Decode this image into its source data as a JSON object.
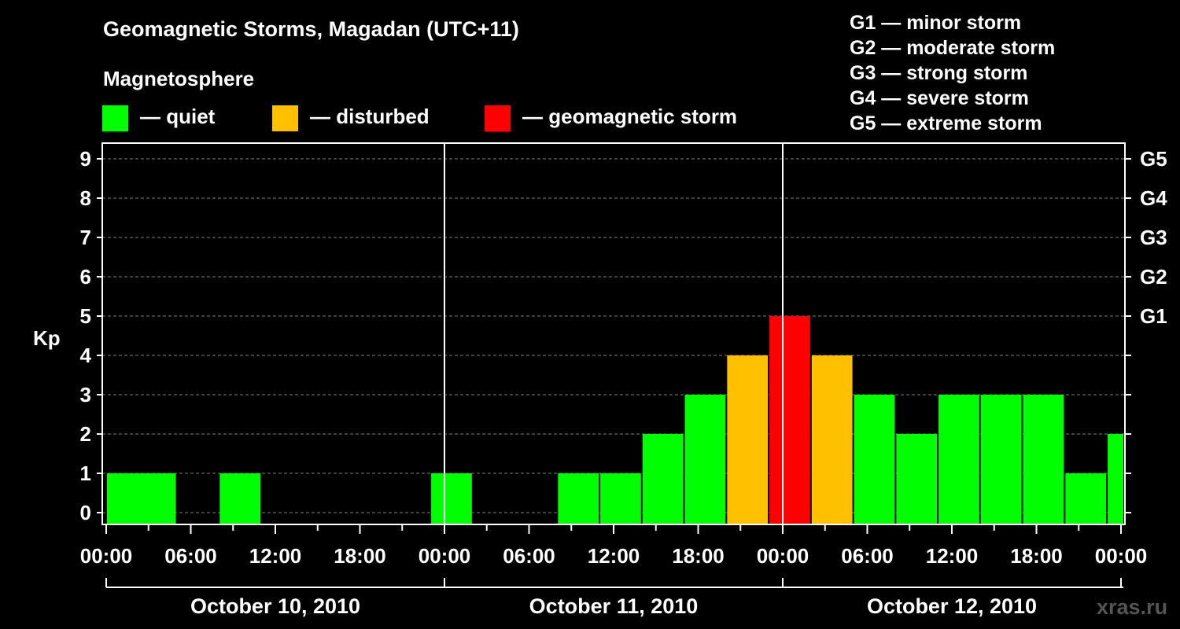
{
  "title": "Geomagnetic Storms, Magadan (UTC+11)",
  "legend": {
    "heading": "Magnetosphere",
    "items": [
      {
        "label": "— quiet",
        "color": "#00ff00"
      },
      {
        "label": "— disturbed",
        "color": "#ffc000"
      },
      {
        "label": "— geomagnetic storm",
        "color": "#ff0000"
      }
    ]
  },
  "scales": [
    "G1 — minor storm",
    "G2 — moderate storm",
    "G3 — strong storm",
    "G4 — severe storm",
    "G5 — extreme storm"
  ],
  "credit": "xras.ru",
  "chart_data": {
    "type": "bar",
    "title": "Geomagnetic Storms, Magadan (UTC+11)",
    "ylabel": "Kp",
    "ylim": [
      0,
      9
    ],
    "yticks": [
      "0",
      "1",
      "2",
      "3",
      "4",
      "5",
      "6",
      "7",
      "8",
      "9"
    ],
    "right_ticks": [
      {
        "kp": 5,
        "label": "G1"
      },
      {
        "kp": 6,
        "label": "G2"
      },
      {
        "kp": 7,
        "label": "G3"
      },
      {
        "kp": 8,
        "label": "G4"
      },
      {
        "kp": 9,
        "label": "G5"
      }
    ],
    "x_hours_range": [
      0,
      72
    ],
    "xtick_labels": [
      "00:00",
      "06:00",
      "12:00",
      "18:00",
      "00:00",
      "06:00",
      "12:00",
      "18:00",
      "00:00",
      "06:00",
      "12:00",
      "18:00",
      "00:00"
    ],
    "days": [
      "October 10, 2010",
      "October 11, 2010",
      "October 12, 2010"
    ],
    "bar_width_hours": 3,
    "bars": [
      {
        "start_h": 0,
        "kp": 1,
        "status": "quiet"
      },
      {
        "start_h": 2,
        "kp": 1,
        "status": "quiet"
      },
      {
        "start_h": 8,
        "kp": 1,
        "status": "quiet"
      },
      {
        "start_h": 23,
        "kp": 1,
        "status": "quiet"
      },
      {
        "start_h": 32,
        "kp": 1,
        "status": "quiet"
      },
      {
        "start_h": 35,
        "kp": 1,
        "status": "quiet"
      },
      {
        "start_h": 38,
        "kp": 2,
        "status": "quiet"
      },
      {
        "start_h": 41,
        "kp": 3,
        "status": "quiet"
      },
      {
        "start_h": 44,
        "kp": 4,
        "status": "disturbed"
      },
      {
        "start_h": 47,
        "kp": 5,
        "status": "storm"
      },
      {
        "start_h": 50,
        "kp": 4,
        "status": "disturbed"
      },
      {
        "start_h": 53,
        "kp": 3,
        "status": "quiet"
      },
      {
        "start_h": 56,
        "kp": 2,
        "status": "quiet"
      },
      {
        "start_h": 59,
        "kp": 3,
        "status": "quiet"
      },
      {
        "start_h": 62,
        "kp": 3,
        "status": "quiet"
      },
      {
        "start_h": 65,
        "kp": 3,
        "status": "quiet"
      },
      {
        "start_h": 68,
        "kp": 1,
        "status": "quiet"
      },
      {
        "start_h": 71,
        "kp": 2,
        "status": "quiet"
      }
    ],
    "colors": {
      "quiet": "#00ff00",
      "disturbed": "#ffc000",
      "storm": "#ff0000",
      "axis": "#ffffff",
      "grid": "#808080"
    }
  }
}
